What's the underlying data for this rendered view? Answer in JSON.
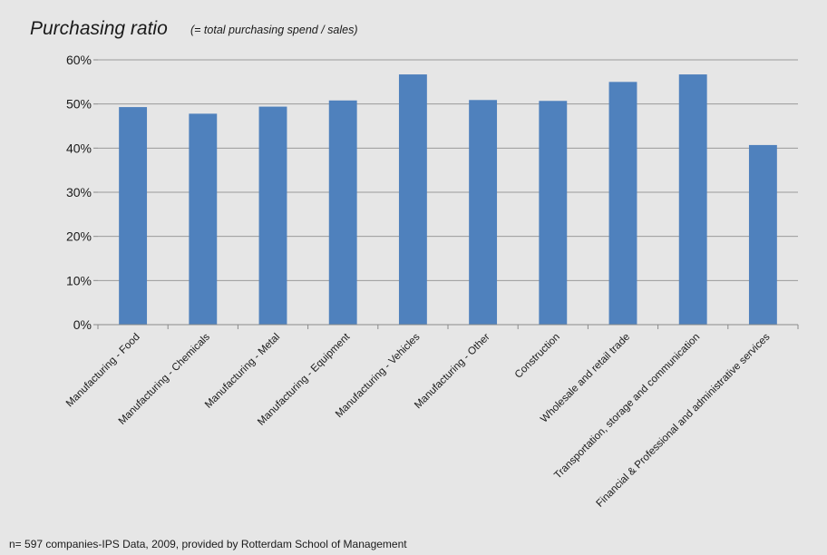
{
  "chart_data": {
    "type": "bar",
    "title": "Purchasing ratio",
    "subtitle": "(= total purchasing spend / sales)",
    "footnote": "n= 597 companies-IPS Data, 2009, provided by Rotterdam School of Management",
    "categories": [
      "Manufacturing  - Food",
      "Manufacturing - Chemicals",
      "Manufacturing - Metal",
      "Manufacturing - Equipment",
      "Manufacturing - Vehicles",
      "Manufacturing - Other",
      "Construction",
      "Wholesale and retail trade",
      "Transportation, storage and communication",
      "Financial & Professional and administrative services"
    ],
    "values": [
      0.493,
      0.478,
      0.494,
      0.508,
      0.567,
      0.509,
      0.507,
      0.55,
      0.567,
      0.407
    ],
    "ylim": [
      0,
      0.6
    ],
    "yticks": [
      {
        "value": 0,
        "label": "0%"
      },
      {
        "value": 0.1,
        "label": "10%"
      },
      {
        "value": 0.2,
        "label": "20%"
      },
      {
        "value": 0.3,
        "label": "30%"
      },
      {
        "value": 0.4,
        "label": "40%"
      },
      {
        "value": 0.5,
        "label": "50%"
      },
      {
        "value": 0.6,
        "label": "60%"
      }
    ],
    "xlabel": "",
    "ylabel": "",
    "grid": true,
    "legend": "none",
    "colors": {
      "bar": "#4f81bd",
      "background": "#e6e6e6"
    }
  }
}
